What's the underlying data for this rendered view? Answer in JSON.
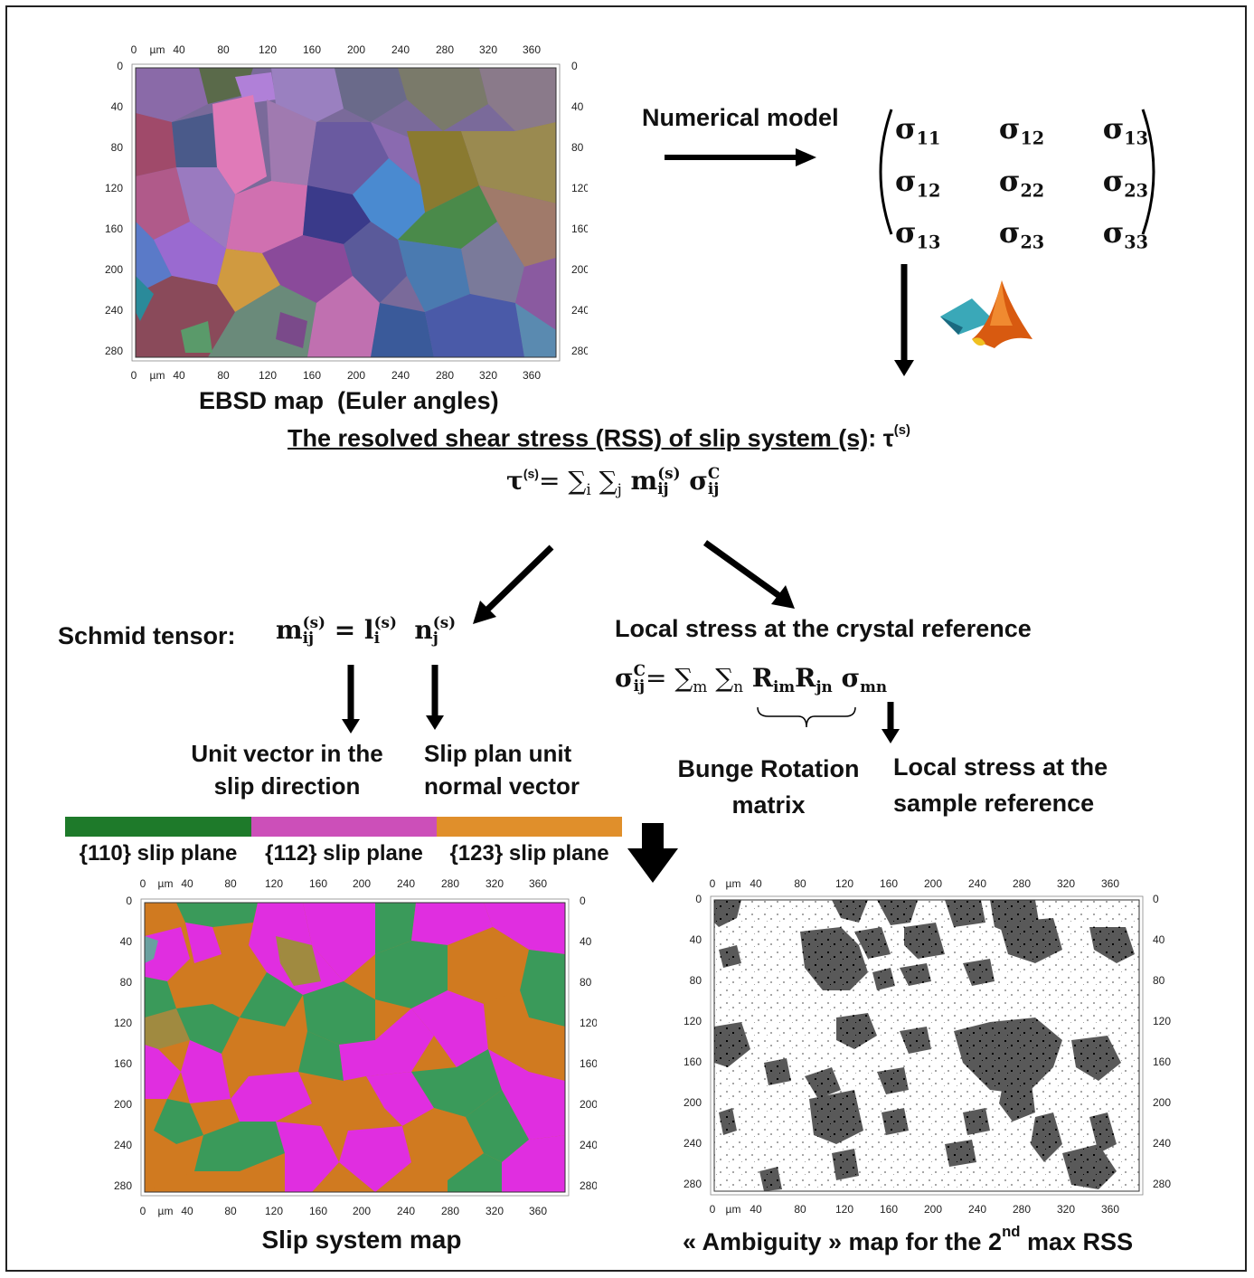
{
  "colors": {
    "slip110": "#1e7a2a",
    "slip112": "#cc4fb9",
    "slip123": "#e08f2b",
    "map_green": "#3a9a5a",
    "map_magenta": "#e02ee0",
    "map_orange": "#d07a20"
  },
  "ebsd": {
    "caption": "EBSD map  (Euler angles)",
    "x_ticks": [
      "0",
      "µm",
      "40",
      "80",
      "120",
      "160",
      "200",
      "240",
      "280",
      "320",
      "360"
    ],
    "y_ticks": [
      "0",
      "40",
      "80",
      "120",
      "160",
      "200",
      "240",
      "280"
    ]
  },
  "numerical_model": {
    "label": "Numerical model",
    "matrix": [
      [
        "σ11",
        "σ12",
        "σ13"
      ],
      [
        "σ12",
        "σ22",
        "σ23"
      ],
      [
        "σ13",
        "σ23",
        "σ33"
      ]
    ],
    "matrix_symbol": "σ",
    "matrix_indices": [
      [
        "11",
        "12",
        "13"
      ],
      [
        "12",
        "22",
        "23"
      ],
      [
        "13",
        "23",
        "33"
      ]
    ]
  },
  "rss": {
    "title": "The resolved shear stress (RSS) of slip system (s)",
    "title_suffix": ": τ",
    "title_sup": "(s)",
    "formula_lhs": "τ",
    "formula_lhs_sup": "(s)",
    "formula_rhs": "= ∑i ∑j m(s)ij σCij"
  },
  "schmid": {
    "label": "Schmid tensor:",
    "formula": "mij(s) = li(s) nj(s)",
    "unit_vector": [
      "Unit vector in the",
      "slip direction"
    ],
    "plane_normal": [
      "Slip plan unit",
      "normal vector"
    ]
  },
  "local_stress": {
    "title": "Local stress at the crystal reference",
    "formula": "σCij = ∑m ∑n Rim Rjn σmn",
    "bunge": [
      "Bunge Rotation",
      "matrix"
    ],
    "sample_ref": [
      "Local stress at the",
      "sample reference"
    ]
  },
  "legend": {
    "items": [
      "{110} slip plane",
      "{112} slip plane",
      "{123} slip plane"
    ]
  },
  "slip_map": {
    "caption": "Slip system map",
    "x_ticks": [
      "0",
      "µm",
      "40",
      "80",
      "120",
      "160",
      "200",
      "240",
      "280",
      "320",
      "360"
    ],
    "y_ticks": [
      "0",
      "40",
      "80",
      "120",
      "160",
      "200",
      "240",
      "280"
    ]
  },
  "ambiguity_map": {
    "caption_pre": "« Ambiguity » map for the 2",
    "caption_sup": "nd",
    "caption_post": " max RSS",
    "x_ticks": [
      "0",
      "µm",
      "40",
      "80",
      "120",
      "160",
      "200",
      "240",
      "280",
      "320",
      "360"
    ],
    "y_ticks": [
      "0",
      "40",
      "80",
      "120",
      "160",
      "200",
      "240",
      "280"
    ]
  }
}
